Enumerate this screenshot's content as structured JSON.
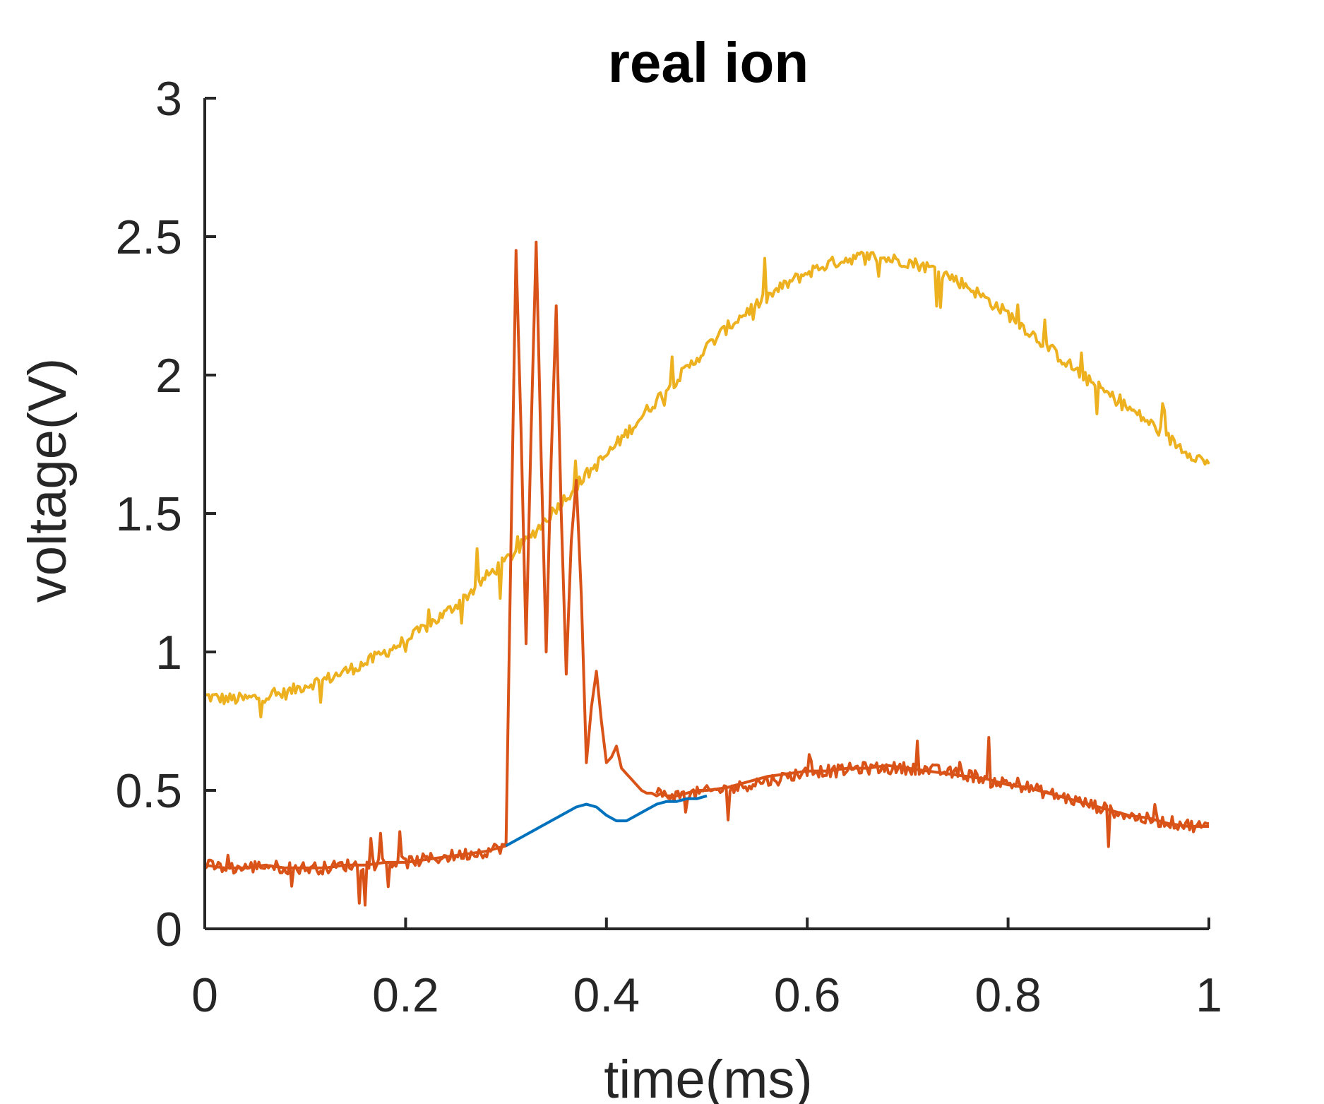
{
  "chart_data": {
    "type": "line",
    "title": "real ion",
    "xlabel": "time(ms)",
    "ylabel": "voltage(V)",
    "xlim": [
      0,
      1
    ],
    "ylim": [
      0,
      3
    ],
    "xticks": [
      0,
      0.2,
      0.4,
      0.6,
      0.8,
      1
    ],
    "yticks": [
      0,
      0.5,
      1,
      1.5,
      2,
      2.5,
      3
    ],
    "xtick_labels": [
      "0",
      "0.2",
      "0.4",
      "0.6",
      "0.8",
      "1"
    ],
    "ytick_labels": [
      "0",
      "0.5",
      "1",
      "1.5",
      "2",
      "2.5",
      "3"
    ],
    "grid": false,
    "series": [
      {
        "color": "#EDB120",
        "noisy": true,
        "x": [
          0,
          0.02,
          0.04,
          0.06,
          0.08,
          0.1,
          0.12,
          0.14,
          0.16,
          0.18,
          0.2,
          0.22,
          0.24,
          0.26,
          0.28,
          0.3,
          0.32,
          0.34,
          0.36,
          0.38,
          0.4,
          0.42,
          0.44,
          0.46,
          0.48,
          0.5,
          0.52,
          0.54,
          0.56,
          0.58,
          0.6,
          0.62,
          0.64,
          0.66,
          0.68,
          0.7,
          0.72,
          0.74,
          0.76,
          0.78,
          0.8,
          0.82,
          0.84,
          0.86,
          0.88,
          0.9,
          0.92,
          0.94,
          0.96,
          0.98,
          1.0
        ],
        "y": [
          0.84,
          0.83,
          0.83,
          0.84,
          0.85,
          0.88,
          0.9,
          0.93,
          0.96,
          1.0,
          1.04,
          1.09,
          1.14,
          1.2,
          1.27,
          1.33,
          1.4,
          1.48,
          1.56,
          1.64,
          1.71,
          1.79,
          1.87,
          1.95,
          2.02,
          2.1,
          2.17,
          2.23,
          2.28,
          2.33,
          2.37,
          2.4,
          2.42,
          2.43,
          2.42,
          2.41,
          2.39,
          2.36,
          2.32,
          2.27,
          2.22,
          2.16,
          2.1,
          2.04,
          1.98,
          1.93,
          1.88,
          1.83,
          1.77,
          1.72,
          1.68
        ]
      },
      {
        "color": "#D95319",
        "noisy": false,
        "x": [
          0,
          0.02,
          0.04,
          0.06,
          0.08,
          0.1,
          0.12,
          0.14,
          0.16,
          0.18,
          0.2,
          0.22,
          0.24,
          0.26,
          0.28,
          0.29,
          0.3,
          0.305,
          0.31,
          0.315,
          0.32,
          0.325,
          0.33,
          0.335,
          0.34,
          0.345,
          0.35,
          0.355,
          0.36,
          0.365,
          0.37,
          0.375,
          0.38,
          0.385,
          0.39,
          0.395,
          0.4,
          0.405,
          0.41,
          0.415,
          0.42,
          0.425,
          0.43,
          0.435,
          0.44,
          0.445,
          0.45,
          0.455,
          0.46,
          0.47,
          0.48,
          0.49,
          0.5,
          0.52,
          0.54,
          0.56,
          0.58,
          0.6,
          0.62,
          0.64,
          0.66,
          0.68,
          0.7,
          0.72,
          0.74,
          0.76,
          0.78,
          0.8,
          0.82,
          0.84,
          0.86,
          0.88,
          0.9,
          0.92,
          0.94,
          0.96,
          0.98,
          1.0
        ],
        "y": [
          0.23,
          0.22,
          0.22,
          0.23,
          0.22,
          0.22,
          0.22,
          0.23,
          0.23,
          0.24,
          0.24,
          0.25,
          0.26,
          0.27,
          0.28,
          0.29,
          0.3,
          1.4,
          2.45,
          1.8,
          1.03,
          1.8,
          2.48,
          1.7,
          1.0,
          1.7,
          2.25,
          1.5,
          0.92,
          1.4,
          1.62,
          1.2,
          0.6,
          0.8,
          0.93,
          0.75,
          0.6,
          0.62,
          0.66,
          0.58,
          0.56,
          0.54,
          0.52,
          0.5,
          0.49,
          0.49,
          0.48,
          0.49,
          0.48,
          0.48,
          0.49,
          0.5,
          0.5,
          0.51,
          0.53,
          0.55,
          0.56,
          0.57,
          0.57,
          0.58,
          0.58,
          0.59,
          0.58,
          0.57,
          0.56,
          0.55,
          0.54,
          0.52,
          0.51,
          0.49,
          0.47,
          0.45,
          0.43,
          0.41,
          0.4,
          0.38,
          0.37,
          0.37
        ]
      },
      {
        "color": "#D95319",
        "noisy": true,
        "x": [
          0,
          0.02,
          0.04,
          0.06,
          0.08,
          0.1,
          0.12,
          0.14,
          0.16,
          0.18,
          0.2,
          0.22,
          0.24,
          0.26,
          0.28,
          0.3
        ],
        "y": [
          0.23,
          0.22,
          0.22,
          0.23,
          0.22,
          0.22,
          0.22,
          0.23,
          0.23,
          0.24,
          0.24,
          0.25,
          0.26,
          0.27,
          0.28,
          0.3
        ]
      },
      {
        "color": "#D95319",
        "noisy": true,
        "x": [
          0.45,
          0.47,
          0.49,
          0.51,
          0.53,
          0.55,
          0.57,
          0.59,
          0.61,
          0.63,
          0.65,
          0.67,
          0.69,
          0.71,
          0.73,
          0.75,
          0.77,
          0.79,
          0.81,
          0.83,
          0.85,
          0.87,
          0.89,
          0.91,
          0.93,
          0.95,
          0.97,
          0.99,
          1.0
        ],
        "y": [
          0.49,
          0.48,
          0.49,
          0.5,
          0.51,
          0.53,
          0.54,
          0.56,
          0.57,
          0.57,
          0.58,
          0.58,
          0.58,
          0.58,
          0.57,
          0.56,
          0.55,
          0.53,
          0.52,
          0.5,
          0.48,
          0.46,
          0.44,
          0.42,
          0.4,
          0.39,
          0.38,
          0.37,
          0.37
        ]
      },
      {
        "color": "#0072BD",
        "noisy": false,
        "x": [
          0.3,
          0.32,
          0.34,
          0.36,
          0.37,
          0.38,
          0.39,
          0.4,
          0.41,
          0.42,
          0.43,
          0.44,
          0.45,
          0.46,
          0.47,
          0.48,
          0.49,
          0.5
        ],
        "y": [
          0.3,
          0.34,
          0.38,
          0.42,
          0.44,
          0.45,
          0.44,
          0.41,
          0.39,
          0.39,
          0.41,
          0.43,
          0.45,
          0.46,
          0.46,
          0.47,
          0.47,
          0.48
        ]
      }
    ]
  }
}
